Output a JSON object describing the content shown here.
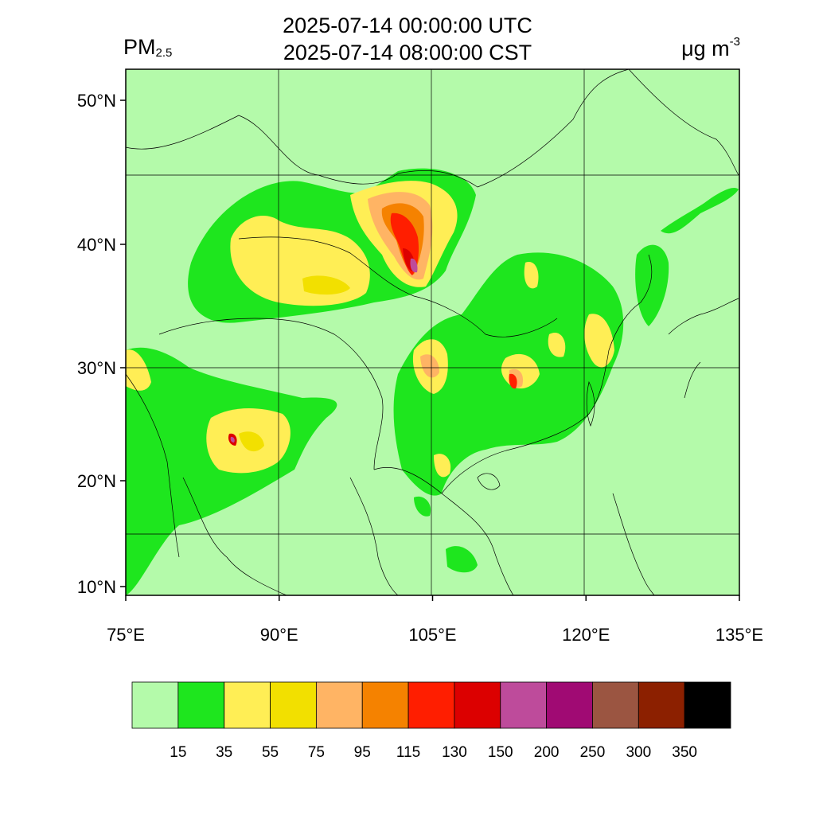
{
  "title": {
    "utc": "2025-07-14 00:00:00 UTC",
    "local": "2025-07-14 08:00:00 CST"
  },
  "variable": {
    "name": "PM",
    "subscript": "2.5"
  },
  "unit": {
    "base": "μg m",
    "exponent": "-3"
  },
  "map": {
    "lon_range": [
      75,
      135
    ],
    "lat_range": [
      9,
      52
    ],
    "lon_ticks": [
      {
        "value": 75,
        "label": "75°E"
      },
      {
        "value": 90,
        "label": "90°E"
      },
      {
        "value": 105,
        "label": "105°E"
      },
      {
        "value": 120,
        "label": "120°E"
      },
      {
        "value": 135,
        "label": "135°E"
      }
    ],
    "lat_ticks": [
      {
        "value": 10,
        "label": "10°N"
      },
      {
        "value": 20,
        "label": "20°N"
      },
      {
        "value": 30,
        "label": "30°N"
      },
      {
        "value": 40,
        "label": "40°N"
      },
      {
        "value": 50,
        "label": "50°N"
      }
    ],
    "gridlines": true
  },
  "colorbar": {
    "colors": [
      "#b4faaa",
      "#1ee61e",
      "#ffee55",
      "#f2e000",
      "#ffb464",
      "#f58200",
      "#ff1e00",
      "#dc0000",
      "#be4b9b",
      "#a00a73",
      "#9b5541",
      "#8c2000",
      "#000000"
    ],
    "labels": [
      "15",
      "35",
      "55",
      "75",
      "95",
      "115",
      "130",
      "150",
      "200",
      "250",
      "300",
      "350"
    ]
  }
}
